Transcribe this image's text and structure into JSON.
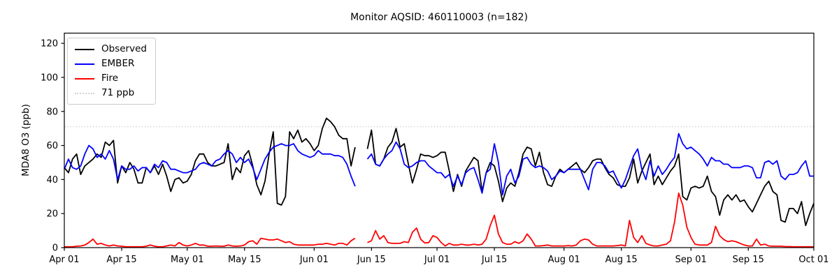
{
  "chart_data": {
    "type": "line",
    "title": "Monitor AQSID: 460110003 (n=182)",
    "xlabel": "",
    "ylabel": "MDA8 O3 (ppb)",
    "grid": false,
    "legend_position": "upper left",
    "ylim": [
      0,
      126
    ],
    "y_ticks": [
      0,
      20,
      40,
      60,
      80,
      100,
      120
    ],
    "n_days": 184,
    "x_start_label": "Apr 01",
    "x_end_label": "Oct 01",
    "x_ticks": [
      {
        "label": "Apr 01",
        "day": 0
      },
      {
        "label": "Apr 15",
        "day": 14
      },
      {
        "label": "May 01",
        "day": 30
      },
      {
        "label": "May 15",
        "day": 44
      },
      {
        "label": "Jun 01",
        "day": 61
      },
      {
        "label": "Jun 15",
        "day": 75
      },
      {
        "label": "Jul 01",
        "day": 91
      },
      {
        "label": "Jul 15",
        "day": 105
      },
      {
        "label": "Aug 01",
        "day": 122
      },
      {
        "label": "Aug 15",
        "day": 136
      },
      {
        "label": "Sep 01",
        "day": 153
      },
      {
        "label": "Sep 15",
        "day": 167
      },
      {
        "label": "Oct 01",
        "day": 183
      }
    ],
    "threshold": {
      "label": "71 ppb",
      "value": 71,
      "color": "#d3d3d3",
      "style": "dotted"
    },
    "missing_days": [
      "Jun 12",
      "Jun 13"
    ],
    "series": [
      {
        "name": "Observed",
        "color": "#000000",
        "values": [
          47,
          44,
          52,
          55,
          43,
          48,
          50,
          52,
          55,
          53,
          62,
          60,
          63,
          38,
          48,
          44,
          50,
          46,
          38,
          38,
          47,
          44,
          48,
          43,
          49,
          42,
          33,
          40,
          41,
          38,
          39,
          43,
          51,
          55,
          55,
          50,
          48,
          48,
          49,
          50,
          61,
          40,
          47,
          44,
          54,
          57,
          48,
          37,
          31,
          39,
          55,
          68,
          26,
          25,
          30,
          68,
          64,
          69,
          62,
          64,
          61,
          57,
          60,
          70,
          76,
          74,
          71,
          66,
          64,
          64,
          48,
          59,
          null,
          null,
          58,
          69,
          49,
          48,
          52,
          59,
          62,
          70,
          59,
          61,
          49,
          38,
          46,
          55,
          54,
          54,
          53,
          54,
          56,
          56,
          45,
          33,
          43,
          36,
          45,
          49,
          53,
          51,
          33,
          44,
          50,
          48,
          39,
          27,
          35,
          38,
          36,
          44,
          55,
          59,
          58,
          48,
          56,
          44,
          37,
          36,
          42,
          46,
          44,
          46,
          48,
          50,
          46,
          44,
          47,
          51,
          52,
          52,
          47,
          43,
          41,
          37,
          36,
          36,
          41,
          52,
          38,
          45,
          50,
          55,
          37,
          42,
          37,
          41,
          45,
          48,
          55,
          30,
          28,
          35,
          36,
          35,
          36,
          42,
          33,
          30,
          19,
          28,
          31,
          28,
          31,
          27,
          28,
          24,
          21,
          26,
          31,
          36,
          39,
          33,
          31,
          16,
          15,
          23,
          23,
          20,
          27,
          13,
          20,
          26
        ]
      },
      {
        "name": "EMBER",
        "color": "#0000ff",
        "values": [
          46,
          52,
          47,
          46,
          48,
          55,
          60,
          58,
          53,
          55,
          52,
          57,
          52,
          40,
          48,
          46,
          46,
          48,
          45,
          47,
          47,
          44,
          49,
          47,
          51,
          50,
          46,
          46,
          45,
          44,
          44,
          45,
          46,
          49,
          50,
          49,
          48,
          51,
          52,
          55,
          57,
          55,
          50,
          53,
          50,
          52,
          47,
          40,
          46,
          52,
          56,
          59,
          60,
          61,
          60,
          60,
          61,
          57,
          55,
          54,
          53,
          54,
          57,
          55,
          55,
          55,
          54,
          54,
          53,
          49,
          42,
          36,
          null,
          null,
          52,
          55,
          49,
          48,
          52,
          55,
          57,
          62,
          58,
          49,
          47,
          48,
          50,
          51,
          51,
          48,
          46,
          44,
          44,
          41,
          43,
          36,
          42,
          37,
          44,
          46,
          47,
          40,
          32,
          44,
          46,
          61,
          50,
          31,
          42,
          46,
          38,
          42,
          52,
          53,
          49,
          47,
          48,
          47,
          45,
          40,
          42,
          45,
          44,
          46,
          46,
          46,
          46,
          40,
          34,
          46,
          50,
          50,
          48,
          44,
          45,
          40,
          35,
          40,
          47,
          54,
          58,
          46,
          40,
          51,
          42,
          48,
          43,
          46,
          50,
          53,
          67,
          61,
          58,
          59,
          57,
          55,
          52,
          48,
          53,
          51,
          51,
          49,
          49,
          47,
          47,
          47,
          48,
          48,
          47,
          41,
          41,
          50,
          51,
          49,
          51,
          42,
          40,
          43,
          43,
          44,
          48,
          51,
          42,
          42
        ]
      },
      {
        "name": "Fire",
        "color": "#ff0000",
        "values": [
          0.5,
          0.5,
          0.5,
          0.8,
          1,
          1.5,
          3,
          5,
          2,
          2.5,
          1.5,
          1,
          1.5,
          1,
          0.8,
          0.5,
          0.5,
          0.5,
          0.5,
          0.5,
          0.8,
          1.5,
          0.8,
          0.5,
          0.5,
          1,
          1.5,
          1,
          3,
          1.5,
          1,
          1.5,
          2.5,
          1.5,
          1.5,
          0.8,
          0.8,
          1,
          0.8,
          0.8,
          1.5,
          1,
          0.8,
          1,
          1.5,
          3.5,
          4,
          2,
          5.5,
          5,
          4.5,
          4.5,
          5,
          4,
          3,
          3.5,
          2,
          1.5,
          1.5,
          1.5,
          1.5,
          1.5,
          2,
          2,
          2.5,
          2,
          1.5,
          2.5,
          2.5,
          1.5,
          4,
          5.5,
          null,
          null,
          3,
          4,
          10,
          5,
          7,
          3,
          2.5,
          2.5,
          2.5,
          3.5,
          3,
          9,
          11.5,
          5,
          2.7,
          3,
          7,
          6,
          3,
          1,
          2.5,
          1.5,
          1.5,
          2,
          1.5,
          1.5,
          2,
          1.5,
          2,
          5,
          13,
          19,
          8,
          3,
          2,
          2,
          3.5,
          2.5,
          4,
          8,
          5,
          1,
          1,
          1.2,
          1.5,
          1,
          1,
          1,
          1,
          1.2,
          1,
          1.5,
          4,
          5,
          4.5,
          2,
          1,
          1,
          1,
          1,
          1,
          1.2,
          1.5,
          1,
          16,
          6,
          3,
          7,
          2.5,
          1.5,
          1,
          1,
          1.5,
          2,
          4,
          15,
          32,
          25,
          12,
          6,
          2,
          1.5,
          1.5,
          1.5,
          3,
          12.5,
          7,
          4.8,
          3.5,
          4,
          3.5,
          2.5,
          1.5,
          1,
          1,
          5,
          1.5,
          2,
          1,
          0.8,
          0.8,
          0.8,
          0.6,
          0.6,
          0.5,
          0.5,
          0.5,
          0.5,
          0.5,
          0.5
        ]
      }
    ]
  }
}
